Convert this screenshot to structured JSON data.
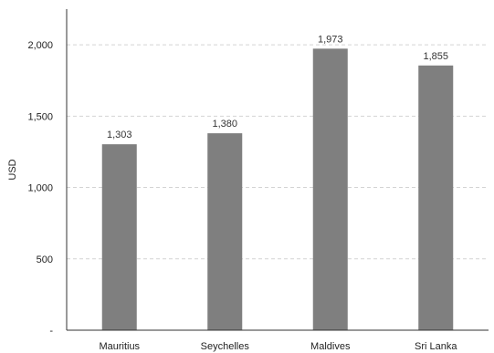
{
  "chart_data": {
    "type": "bar",
    "title": "",
    "xlabel": "",
    "ylabel": "USD",
    "categories": [
      "Mauritius",
      "Seychelles",
      "Maldives",
      "Sri Lanka"
    ],
    "values": [
      1303,
      1380,
      1973,
      1855
    ],
    "data_labels": [
      "1,303",
      "1,380",
      "1,973",
      "1,855"
    ],
    "ylim": [
      0,
      2250
    ],
    "yticks": [
      0,
      500,
      1000,
      1500,
      2000
    ],
    "ytick_labels": [
      "-",
      "500",
      "1,000",
      "1,500",
      "2,000"
    ],
    "grid": true,
    "legend": "none",
    "bar_color": "#7f7f7f"
  }
}
